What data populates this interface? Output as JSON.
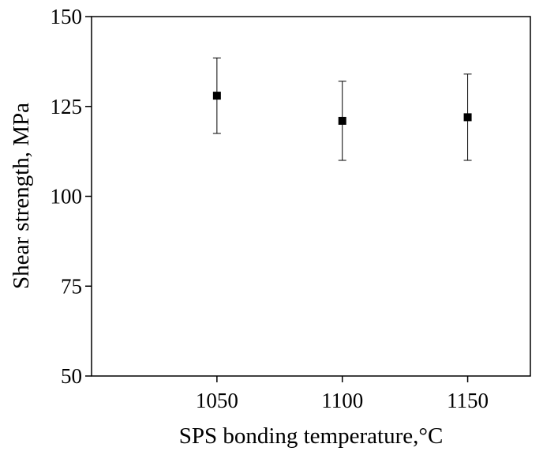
{
  "chart_data": {
    "type": "scatter",
    "title": "",
    "xlabel": "SPS bonding temperature,°C",
    "ylabel": "Shear strength, MPa",
    "xlim": [
      1000,
      1175
    ],
    "ylim": [
      50,
      150
    ],
    "xticks": [
      1050,
      1100,
      1150
    ],
    "yticks": [
      50,
      75,
      100,
      125,
      150
    ],
    "grid": false,
    "legend": "none",
    "series": [
      {
        "marker": "square",
        "color": "#000000",
        "x": [
          1050,
          1100,
          1150
        ],
        "y": [
          128,
          121,
          122
        ],
        "y_err_low": [
          117.5,
          110,
          110
        ],
        "y_err_high": [
          138.5,
          132,
          134
        ]
      }
    ]
  }
}
